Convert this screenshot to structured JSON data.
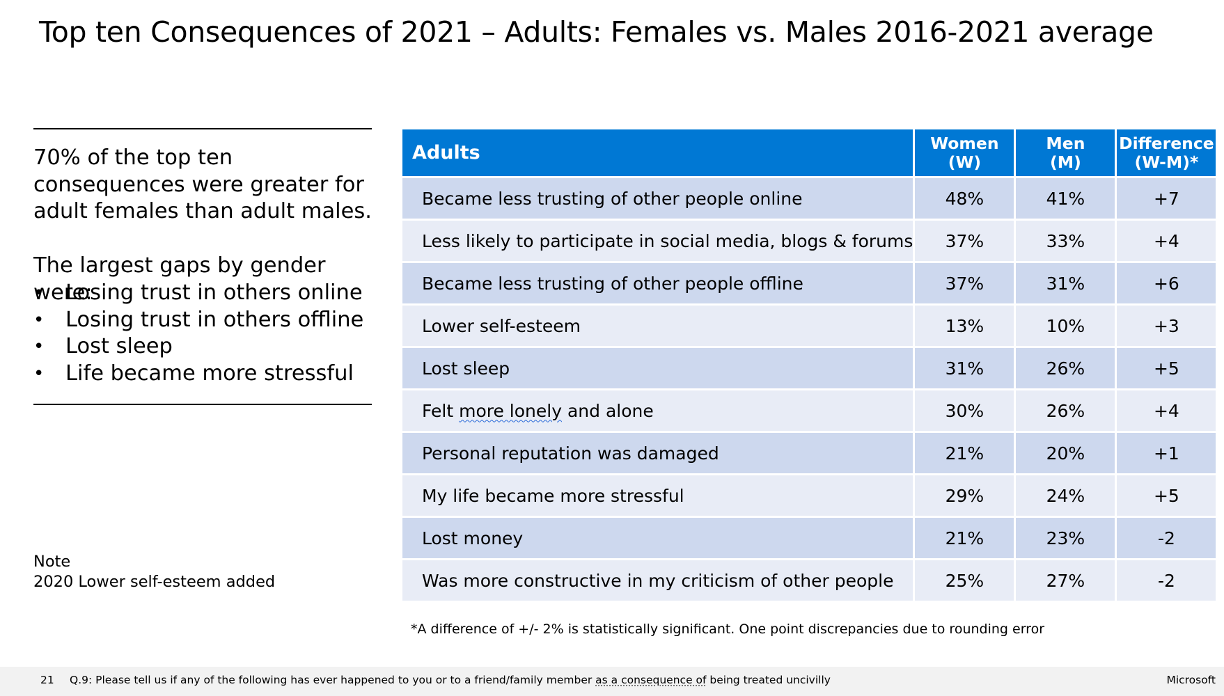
{
  "title": "Top ten Consequences of 2021 – Adults: Females vs. Males 2016-2021 average",
  "summary": {
    "intro": "70% of the top ten consequences were greater for adult females than adult males.",
    "gaps_heading": "The largest gaps by gender were:",
    "bullet_glyph": "•",
    "gaps": [
      "Losing trust in others online",
      "Losing trust in others offline",
      "Lost sleep",
      "Life became more stressful"
    ]
  },
  "note": {
    "label": "Note",
    "text": "2020 Lower self-esteem added"
  },
  "table": {
    "headers": {
      "label": "Adults",
      "women_line1": "Women",
      "women_line2": "(W)",
      "men_line1": "Men",
      "men_line2": "(M)",
      "diff_line1": "Difference",
      "diff_line2": "(W-M)*"
    },
    "rows": [
      {
        "label": "Became less trusting of other people online",
        "women": "48%",
        "men": "41%",
        "diff": "+7"
      },
      {
        "label": "Less likely to participate in social media, blogs & forums",
        "women": "37%",
        "men": "33%",
        "diff": "+4"
      },
      {
        "label": "Became less trusting of other people offline",
        "women": "37%",
        "men": "31%",
        "diff": "+6"
      },
      {
        "label": "Lower self-esteem",
        "women": "13%",
        "men": "10%",
        "diff": "+3"
      },
      {
        "label": "Lost sleep",
        "women": "31%",
        "men": "26%",
        "diff": "+5"
      },
      {
        "label_pre": "Felt ",
        "label_mark": "more lonely",
        "label_post": " and alone",
        "women": "30%",
        "men": "26%",
        "diff": "+4"
      },
      {
        "label": "Personal reputation was damaged",
        "women": "21%",
        "men": "20%",
        "diff": "+1"
      },
      {
        "label": "My life became more stressful",
        "women": "29%",
        "men": "24%",
        "diff": "+5"
      },
      {
        "label": "Lost money",
        "women": "21%",
        "men": "23%",
        "diff": "-2"
      },
      {
        "label": "Was more constructive in my criticism of other people",
        "women": "25%",
        "men": "27%",
        "diff": "-2"
      }
    ]
  },
  "footnote": "*A difference of +/- 2% is statistically significant. One point discrepancies due to rounding error",
  "footer": {
    "page_number": "21",
    "question_pre": "Q.9: Please tell us if any of the following has ever happened to you or to a friend/family member ",
    "question_mark": "as a consequence of",
    "question_post": " being treated uncivilly",
    "brand": "Microsoft"
  },
  "colors": {
    "header_bg": "#0078d4",
    "row_odd": "#cdd8ee",
    "row_even": "#e8ecf6",
    "footer_bg": "#f2f2f2"
  }
}
